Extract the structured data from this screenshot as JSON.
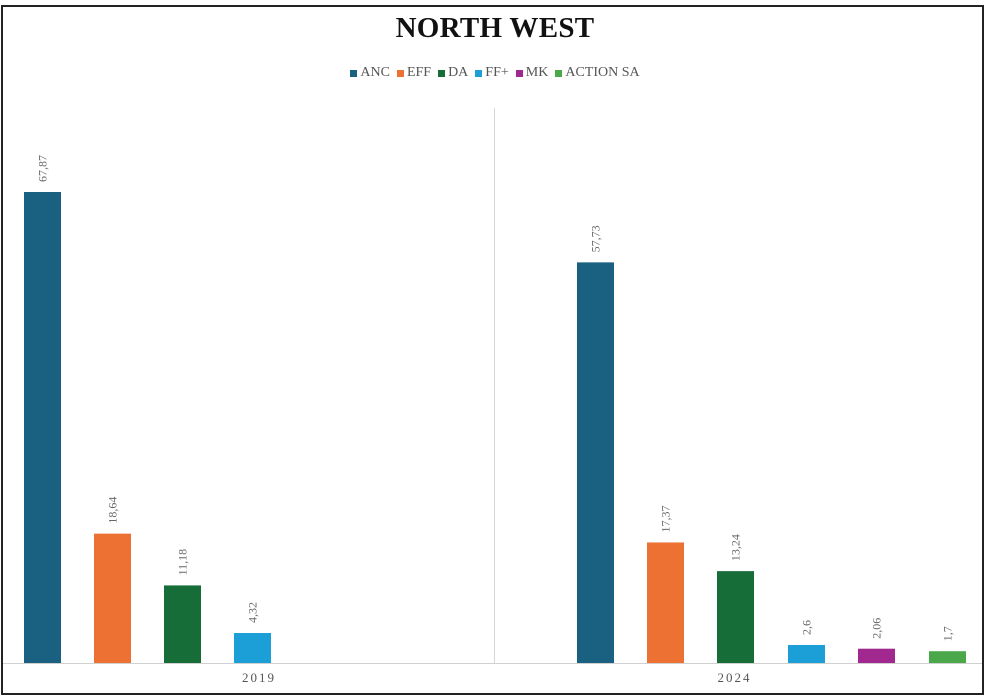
{
  "chart_data": {
    "type": "bar",
    "title": "NORTH WEST",
    "xlabel": "",
    "ylabel": "",
    "legend_position": "top",
    "grid": false,
    "ylim": [
      0,
      70
    ],
    "categories": [
      "2019",
      "2024"
    ],
    "series": [
      {
        "name": "ANC",
        "color": "#1a6080",
        "values": [
          67.87,
          57.73
        ],
        "labels": [
          "67,87",
          "57,73"
        ]
      },
      {
        "name": "EFF",
        "color": "#ec7132",
        "values": [
          18.64,
          17.37
        ],
        "labels": [
          "18,64",
          "17,37"
        ]
      },
      {
        "name": "DA",
        "color": "#176d38",
        "values": [
          11.18,
          13.24
        ],
        "labels": [
          "11,18",
          "13,24"
        ]
      },
      {
        "name": "FF+",
        "color": "#1b9fd6",
        "values": [
          4.32,
          2.6
        ],
        "labels": [
          "4,32",
          "2,6"
        ]
      },
      {
        "name": "MK",
        "color": "#a0288f",
        "values": [
          null,
          2.06
        ],
        "labels": [
          null,
          "2,06"
        ]
      },
      {
        "name": "ACTION SA",
        "color": "#4aa84a",
        "values": [
          null,
          1.7
        ],
        "labels": [
          null,
          "1,7"
        ]
      }
    ]
  }
}
